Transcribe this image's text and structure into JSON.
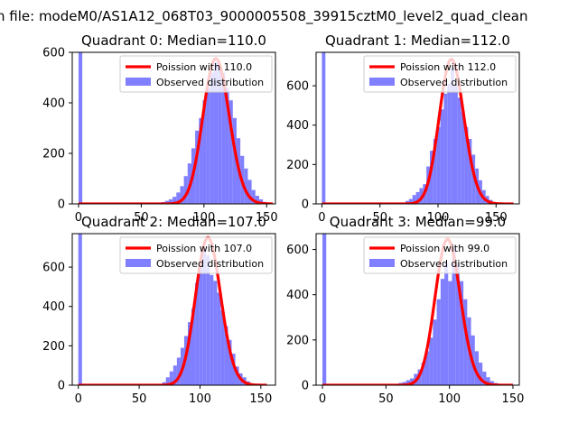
{
  "figure": {
    "suptitle": "n file: modeM0/AS1A12_068T03_9000005508_39915cztM0_level2_quad_clean"
  },
  "colors": {
    "histogram": "#7f7fff",
    "poisson": "#ff0000",
    "axis": "#000000"
  },
  "chart_data": [
    {
      "type": "bar",
      "title": "Quadrant 0: Median=110.0",
      "median": 110.0,
      "xlim": [
        -5,
        157
      ],
      "ylim": [
        0,
        600
      ],
      "xticks": [
        0,
        50,
        100,
        150
      ],
      "yticks": [
        0,
        200,
        400,
        600
      ],
      "xtick_labels": [
        "0",
        "50",
        "100",
        "150"
      ],
      "ytick_labels": [
        "0",
        "200",
        "400",
        "600"
      ],
      "legend": {
        "position": "upper right",
        "entries": [
          "Poission with 110.0",
          "Observed distribution"
        ]
      },
      "series": [
        {
          "name": "Observed distribution",
          "kind": "histogram",
          "bin_width": 3,
          "bins_start": [
            0,
            60,
            63,
            66,
            69,
            72,
            75,
            78,
            81,
            84,
            87,
            90,
            93,
            96,
            99,
            102,
            105,
            108,
            111,
            114,
            117,
            120,
            123,
            126,
            129,
            132,
            135,
            138,
            141,
            144,
            147
          ],
          "counts": [
            600,
            2,
            4,
            7,
            12,
            18,
            28,
            45,
            70,
            110,
            160,
            220,
            290,
            340,
            410,
            460,
            520,
            560,
            550,
            520,
            460,
            410,
            340,
            260,
            190,
            140,
            95,
            55,
            32,
            18,
            8
          ]
        },
        {
          "name": "Poission with 110.0",
          "kind": "poisson_curve",
          "lambda": 110.0,
          "x_range": [
            0,
            155
          ],
          "peak": 575
        }
      ]
    },
    {
      "type": "bar",
      "title": "Quadrant 1: Median=112.0",
      "median": 112.0,
      "xlim": [
        -5,
        170
      ],
      "ylim": [
        0,
        770
      ],
      "xticks": [
        0,
        50,
        100,
        150
      ],
      "yticks": [
        0,
        200,
        400,
        600
      ],
      "xtick_labels": [
        "0",
        "50",
        "100",
        "150"
      ],
      "ytick_labels": [
        "0",
        "200",
        "400",
        "600"
      ],
      "legend": {
        "position": "upper right",
        "entries": [
          "Poission with 112.0",
          "Observed distribution"
        ]
      },
      "series": [
        {
          "name": "Observed distribution",
          "kind": "histogram",
          "bin_width": 3,
          "bins_start": [
            0,
            72,
            75,
            78,
            81,
            84,
            87,
            90,
            93,
            96,
            99,
            102,
            105,
            108,
            111,
            114,
            117,
            120,
            123,
            126,
            129,
            132,
            135,
            138,
            141,
            144,
            147
          ],
          "counts": [
            770,
            15,
            25,
            45,
            60,
            80,
            100,
            190,
            270,
            330,
            390,
            480,
            560,
            610,
            690,
            600,
            540,
            470,
            390,
            330,
            250,
            180,
            120,
            70,
            40,
            20,
            8
          ]
        },
        {
          "name": "Poission with 112.0",
          "kind": "poisson_curve",
          "lambda": 112.0,
          "x_range": [
            0,
            165
          ],
          "peak": 735
        }
      ]
    },
    {
      "type": "bar",
      "title": "Quadrant 2: Median=107.0",
      "median": 107.0,
      "xlim": [
        -5,
        162
      ],
      "ylim": [
        0,
        770
      ],
      "xticks": [
        0,
        50,
        100,
        150
      ],
      "yticks": [
        0,
        200,
        400,
        600
      ],
      "xtick_labels": [
        "0",
        "50",
        "100",
        "150"
      ],
      "ytick_labels": [
        "0",
        "200",
        "400",
        "600"
      ],
      "legend": {
        "position": "upper right",
        "entries": [
          "Poission with 107.0",
          "Observed distribution"
        ]
      },
      "series": [
        {
          "name": "Observed distribution",
          "kind": "histogram",
          "bin_width": 3,
          "bins_start": [
            0,
            69,
            72,
            75,
            78,
            81,
            84,
            87,
            90,
            93,
            96,
            99,
            102,
            105,
            108,
            111,
            114,
            117,
            120,
            123,
            126,
            129,
            132,
            135,
            138,
            141,
            144,
            147
          ],
          "counts": [
            770,
            15,
            40,
            70,
            100,
            140,
            190,
            250,
            320,
            390,
            520,
            630,
            700,
            660,
            560,
            530,
            470,
            380,
            300,
            230,
            160,
            95,
            60,
            40,
            20,
            10,
            5,
            2
          ]
        },
        {
          "name": "Poission with 107.0",
          "kind": "poisson_curve",
          "lambda": 107.0,
          "x_range": [
            0,
            155
          ],
          "peak": 750
        }
      ]
    },
    {
      "type": "bar",
      "title": "Quadrant 3: Median=99.0",
      "median": 99.0,
      "xlim": [
        -5,
        155
      ],
      "ylim": [
        0,
        670
      ],
      "xticks": [
        0,
        50,
        100,
        150
      ],
      "yticks": [
        0,
        200,
        400,
        600
      ],
      "xtick_labels": [
        "0",
        "50",
        "100",
        "150"
      ],
      "ytick_labels": [
        "0",
        "200",
        "400",
        "600"
      ],
      "legend": {
        "position": "upper right",
        "entries": [
          "Poission with 99.0",
          "Observed distribution"
        ]
      },
      "series": [
        {
          "name": "Observed distribution",
          "kind": "histogram",
          "bin_width": 3,
          "bins_start": [
            0,
            51,
            54,
            57,
            60,
            63,
            66,
            69,
            72,
            75,
            78,
            81,
            84,
            87,
            90,
            93,
            96,
            99,
            102,
            105,
            108,
            111,
            114,
            117,
            120,
            123,
            126,
            129,
            132,
            135,
            138,
            141
          ],
          "counts": [
            670,
            2,
            4,
            6,
            10,
            14,
            22,
            30,
            50,
            70,
            100,
            150,
            210,
            290,
            380,
            470,
            540,
            460,
            610,
            540,
            460,
            380,
            300,
            220,
            150,
            100,
            60,
            35,
            18,
            10,
            5,
            2
          ]
        },
        {
          "name": "Poission with 99.0",
          "kind": "poisson_curve",
          "lambda": 99.0,
          "x_range": [
            0,
            150
          ],
          "peak": 645
        }
      ]
    }
  ]
}
